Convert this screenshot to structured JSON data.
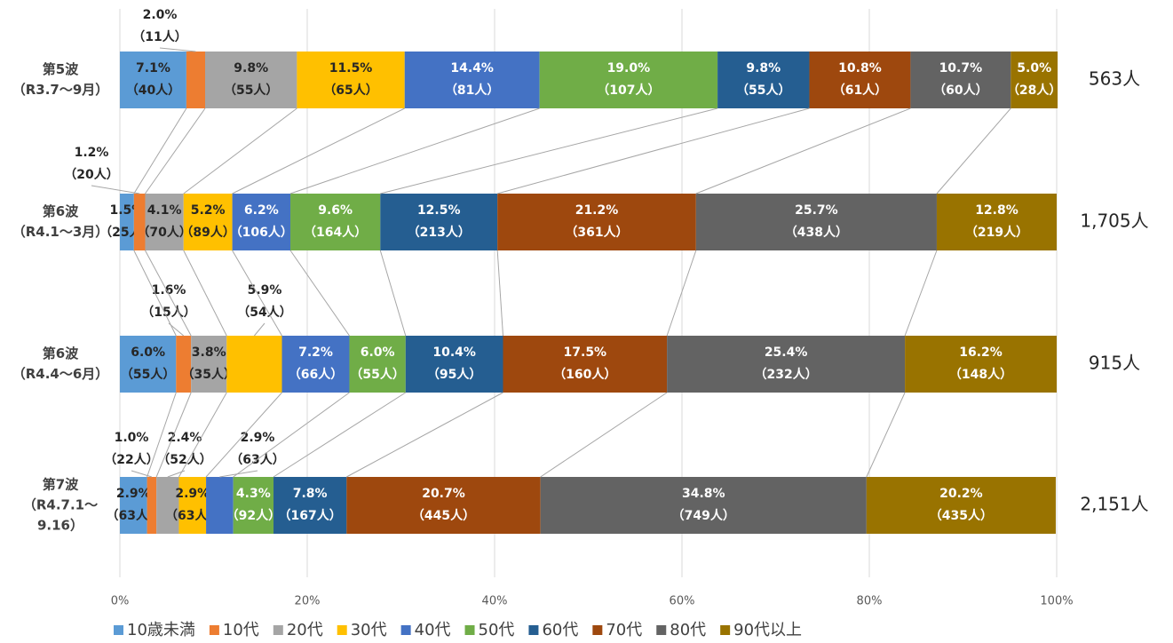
{
  "chart_data": {
    "type": "stacked-bar-horizontal",
    "categories": [
      [
        "第5波",
        "（R3.7～9月）"
      ],
      [
        "第6波",
        "（R4.1～3月）"
      ],
      [
        "第6波",
        "（R4.4～6月）"
      ],
      [
        "第7波",
        "（R4.7.1～",
        "9.16）"
      ]
    ],
    "totals": [
      "563人",
      "1,705人",
      "915人",
      "2,151人"
    ],
    "xlim": [
      0,
      100
    ],
    "xticks": [
      {
        "value": 0,
        "label": "0%"
      },
      {
        "value": 20,
        "label": "20%"
      },
      {
        "value": 40,
        "label": "40%"
      },
      {
        "value": 60,
        "label": "60%"
      },
      {
        "value": 80,
        "label": "80%"
      },
      {
        "value": 100,
        "label": "100%"
      }
    ],
    "grid": true,
    "legend": "bottom",
    "series": [
      {
        "name": "10歳未満",
        "color": "#5b9bd5",
        "values": [
          7.1,
          1.5,
          6.0,
          2.9
        ],
        "value_labels": [
          [
            "7.1%",
            "（40人）"
          ],
          [
            "1.5%",
            "（25人）"
          ],
          [
            "6.0%",
            "（55人）"
          ],
          [
            "2.9%",
            "（63人）"
          ]
        ]
      },
      {
        "name": "10代",
        "color": "#ed7d31",
        "values": [
          2.0,
          1.2,
          1.6,
          1.0
        ],
        "value_labels": [
          [
            "2.0%",
            "（11人）"
          ],
          [
            "1.2%",
            "（20人）"
          ],
          [
            "1.6%",
            "（15人）"
          ],
          [
            "1.0%",
            "（22人）"
          ]
        ]
      },
      {
        "name": "20代",
        "color": "#a5a5a5",
        "values": [
          9.8,
          4.1,
          3.8,
          2.4
        ],
        "value_labels": [
          [
            "9.8%",
            "（55人）"
          ],
          [
            "4.1%",
            "（70人）"
          ],
          [
            "3.8%",
            "（35人）"
          ],
          [
            "2.4%",
            "（52人）"
          ]
        ]
      },
      {
        "name": "30代",
        "color": "#ffc000",
        "values": [
          11.5,
          5.2,
          5.9,
          2.9
        ],
        "value_labels": [
          [
            "11.5%",
            "（65人）"
          ],
          [
            "5.2%",
            "（89人）"
          ],
          [
            "5.9%",
            "（54人）"
          ],
          [
            "2.9%",
            "（63人）"
          ]
        ]
      },
      {
        "name": "40代",
        "color": "#4472c4",
        "values": [
          14.4,
          6.2,
          7.2,
          2.9
        ],
        "value_labels": [
          [
            "14.4%",
            "（81人）"
          ],
          [
            "6.2%",
            "（106人）"
          ],
          [
            "7.2%",
            "（66人）"
          ],
          [
            "2.9%",
            "（63人）"
          ]
        ]
      },
      {
        "name": "50代",
        "color": "#70ad47",
        "values": [
          19.0,
          9.6,
          6.0,
          4.3
        ],
        "value_labels": [
          [
            "19.0%",
            "（107人）"
          ],
          [
            "9.6%",
            "（164人）"
          ],
          [
            "6.0%",
            "（55人）"
          ],
          [
            "4.3%",
            "（92人）"
          ]
        ]
      },
      {
        "name": "60代",
        "color": "#255e91",
        "values": [
          9.8,
          12.5,
          10.4,
          7.8
        ],
        "value_labels": [
          [
            "9.8%",
            "（55人）"
          ],
          [
            "12.5%",
            "（213人）"
          ],
          [
            "10.4%",
            "（95人）"
          ],
          [
            "7.8%",
            "（167人）"
          ]
        ]
      },
      {
        "name": "70代",
        "color": "#9e480e",
        "values": [
          10.8,
          21.2,
          17.5,
          20.7
        ],
        "value_labels": [
          [
            "10.8%",
            "（61人）"
          ],
          [
            "21.2%",
            "（361人）"
          ],
          [
            "17.5%",
            "（160人）"
          ],
          [
            "20.7%",
            "（445人）"
          ]
        ]
      },
      {
        "name": "80代",
        "color": "#636363",
        "values": [
          10.7,
          25.7,
          25.4,
          34.8
        ],
        "value_labels": [
          [
            "10.7%",
            "（60人）"
          ],
          [
            "25.7%",
            "（438人）"
          ],
          [
            "25.4%",
            "（232人）"
          ],
          [
            "34.8%",
            "（749人）"
          ]
        ]
      },
      {
        "name": "90代以上",
        "color": "#997300",
        "values": [
          5.0,
          12.8,
          16.2,
          20.2
        ],
        "value_labels": [
          [
            "5.0%",
            "（28人）"
          ],
          [
            "12.8%",
            "（219人）"
          ],
          [
            "16.2%",
            "（148人）"
          ],
          [
            "20.2%",
            "（435人）"
          ]
        ]
      }
    ]
  }
}
